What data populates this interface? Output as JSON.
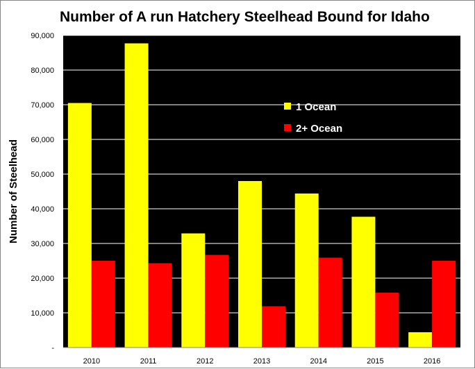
{
  "chart_data": {
    "type": "bar",
    "title": "Number of A run Hatchery Steelhead Bound for Idaho",
    "xlabel": "",
    "ylabel": "Number of Steelhead",
    "categories": [
      "2010",
      "2011",
      "2012",
      "2013",
      "2014",
      "2015",
      "2016"
    ],
    "series": [
      {
        "name": "1 Ocean",
        "color": "#ffff00",
        "values": [
          70500,
          87700,
          32900,
          48000,
          44400,
          37700,
          4400
        ]
      },
      {
        "name": "2+ Ocean",
        "color": "#ff0000",
        "values": [
          25000,
          24300,
          26700,
          11900,
          25900,
          15800,
          25000
        ]
      }
    ],
    "ylim": [
      0,
      90000
    ],
    "y_ticks": [
      0,
      10000,
      20000,
      30000,
      40000,
      50000,
      60000,
      70000,
      80000,
      90000
    ],
    "y_tick_labels": [
      "-",
      "10,000",
      "20,000",
      "30,000",
      "40,000",
      "50,000",
      "60,000",
      "70,000",
      "80,000",
      "90,000"
    ],
    "grid": true,
    "legend_position": "top-right",
    "plot_background": "#000000",
    "gridline_color": "#ffffff"
  }
}
